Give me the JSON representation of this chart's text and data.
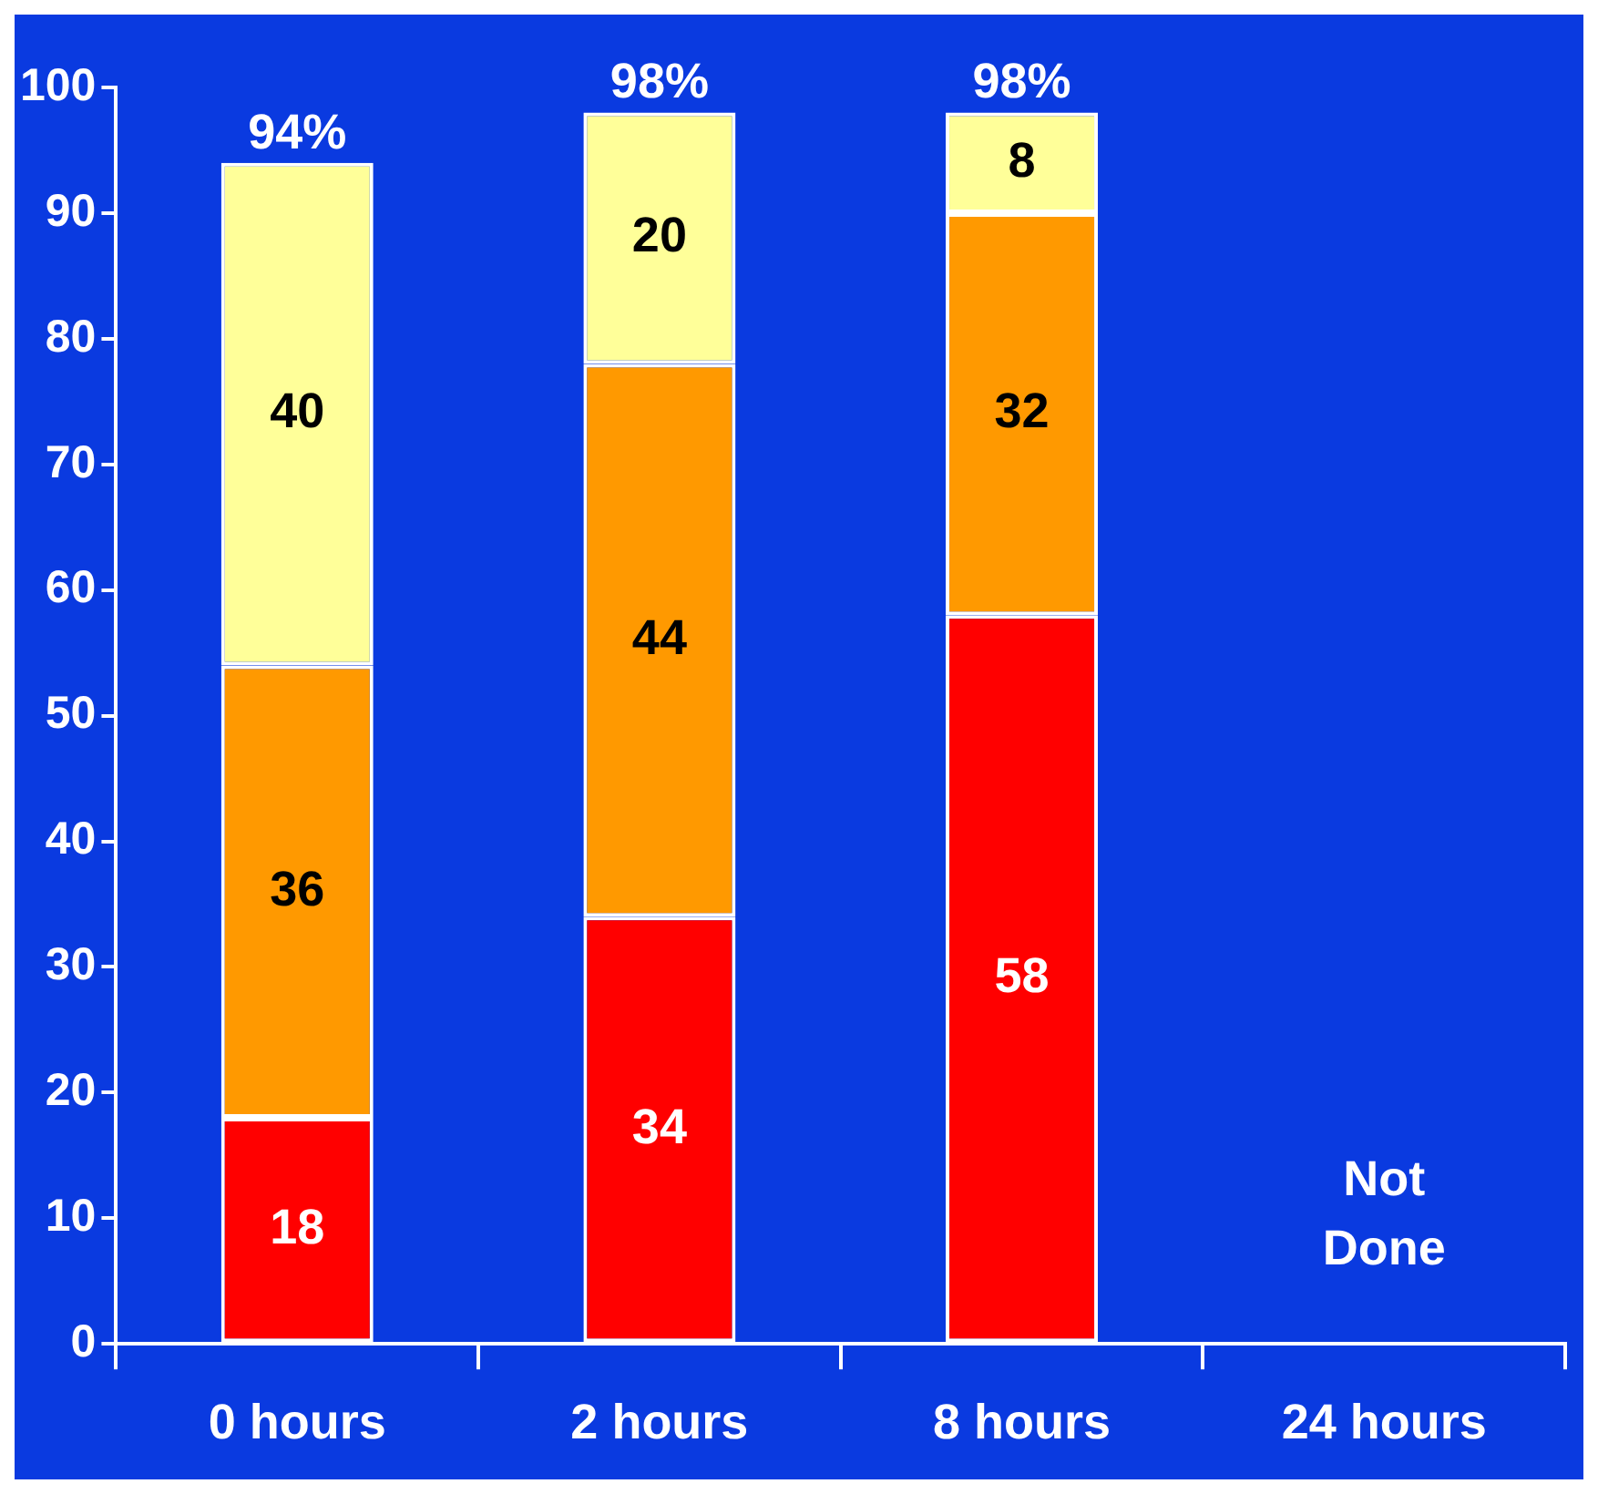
{
  "chart_data": {
    "type": "bar",
    "stacked": true,
    "categories": [
      "0 hours",
      "2 hours",
      "8 hours",
      "24 hours"
    ],
    "series": [
      {
        "color": "#ff0000",
        "values": [
          18,
          34,
          58,
          null
        ]
      },
      {
        "color": "#ff9900",
        "values": [
          36,
          44,
          32,
          null
        ]
      },
      {
        "color": "#ffff99",
        "values": [
          40,
          20,
          8,
          null
        ]
      }
    ],
    "ylim": [
      0,
      100
    ],
    "yticks": [
      0,
      10,
      20,
      30,
      40,
      50,
      60,
      70,
      80,
      90,
      100
    ],
    "grid": false,
    "legend": false,
    "data_labels": true,
    "totals": [
      "94%",
      "98%",
      "98%",
      null
    ],
    "annotations": [
      "Not Done"
    ]
  }
}
